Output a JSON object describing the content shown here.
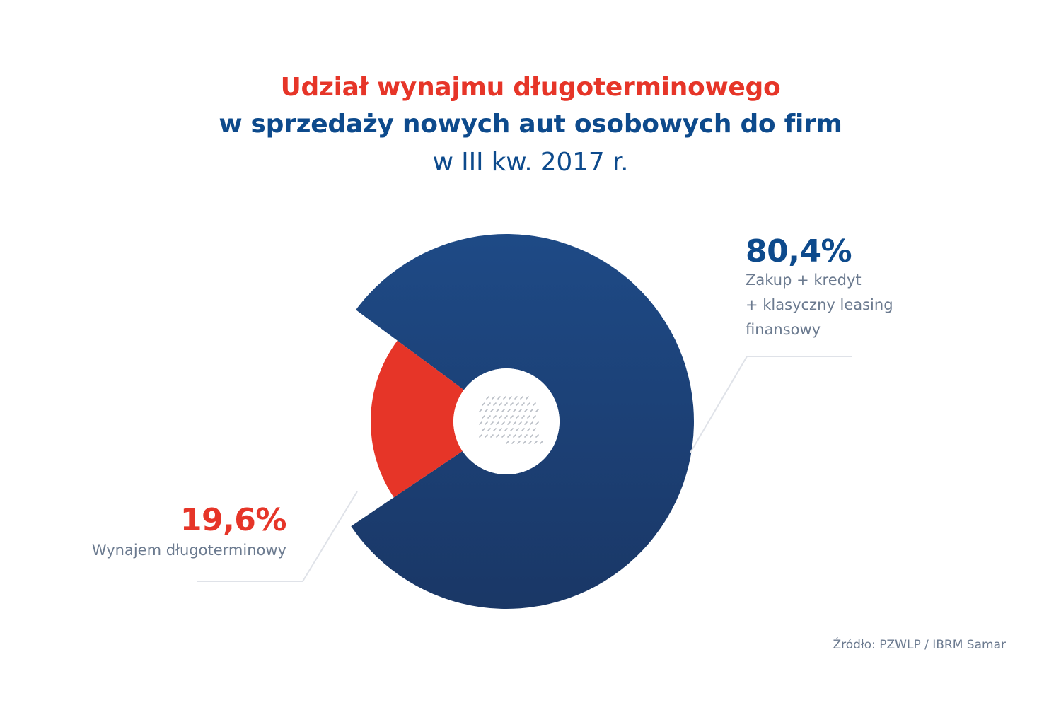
{
  "chart_data": {
    "type": "pie",
    "title_line1": "Udział wynajmu długoterminowego",
    "title_line2": "w sprzedaży nowych aut osobowych do firm",
    "subtitle": "w III kw. 2017 r.",
    "slices": [
      {
        "label_pct": "80,4%",
        "label_lines": [
          "Zakup + kredyt",
          "+ klasyczny leasing",
          "finansowy"
        ],
        "value": 80.4,
        "color": "#1f4a82"
      },
      {
        "label_pct": "19,6%",
        "label_lines": [
          "Wynajem długoterminowy"
        ],
        "value": 19.6,
        "color": "#e63528"
      }
    ],
    "source": "Źródło: PZWLP / IBRM Samar"
  },
  "colors": {
    "title_red": "#e63528",
    "title_blue": "#0d4a8c",
    "label_gray": "#6b7a8f",
    "leader_line": "#dfe2e8"
  }
}
